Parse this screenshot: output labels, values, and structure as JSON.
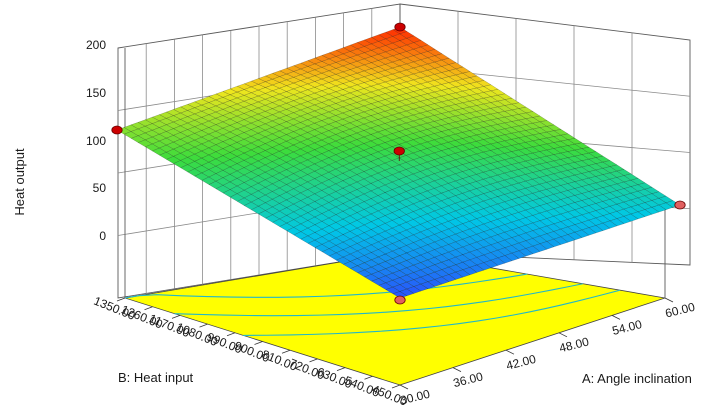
{
  "chart_data": {
    "type": "surface3d",
    "zlabel": "Heat output",
    "xlabel": "A: Angle inclination",
    "ylabel": "B: Heat input",
    "x_ticks": [
      "30.00",
      "36.00",
      "42.00",
      "48.00",
      "54.00",
      "60.00"
    ],
    "y_ticks": [
      "450.00",
      "540.00",
      "630.00",
      "720.00",
      "810.00",
      "900.00",
      "990.00",
      "1080.00",
      "1170.00",
      "1260.00",
      "1350.00"
    ],
    "z_ticks": [
      "0",
      "50",
      "100",
      "150",
      "200"
    ],
    "xlim": [
      30,
      60
    ],
    "ylim": [
      450,
      1350
    ],
    "zlim": [
      0,
      200
    ],
    "surface_corners": {
      "a30_b450": 16,
      "a60_b450": 62,
      "a30_b1350": 124,
      "a60_b1350": 200
    },
    "design_points": [
      {
        "a": 45,
        "b": 900,
        "z": 100
      },
      {
        "a": 30,
        "b": 1350,
        "z": 124
      },
      {
        "a": 60,
        "b": 1350,
        "z": 200
      },
      {
        "a": 60,
        "b": 450,
        "z": 62
      },
      {
        "a": 30,
        "b": 450,
        "z": 16
      }
    ],
    "colors": {
      "floor": "#ffff00",
      "contour": "#22b8c8",
      "point": "#cc0000",
      "low": "#3040ff",
      "high": "#ff2000"
    }
  }
}
